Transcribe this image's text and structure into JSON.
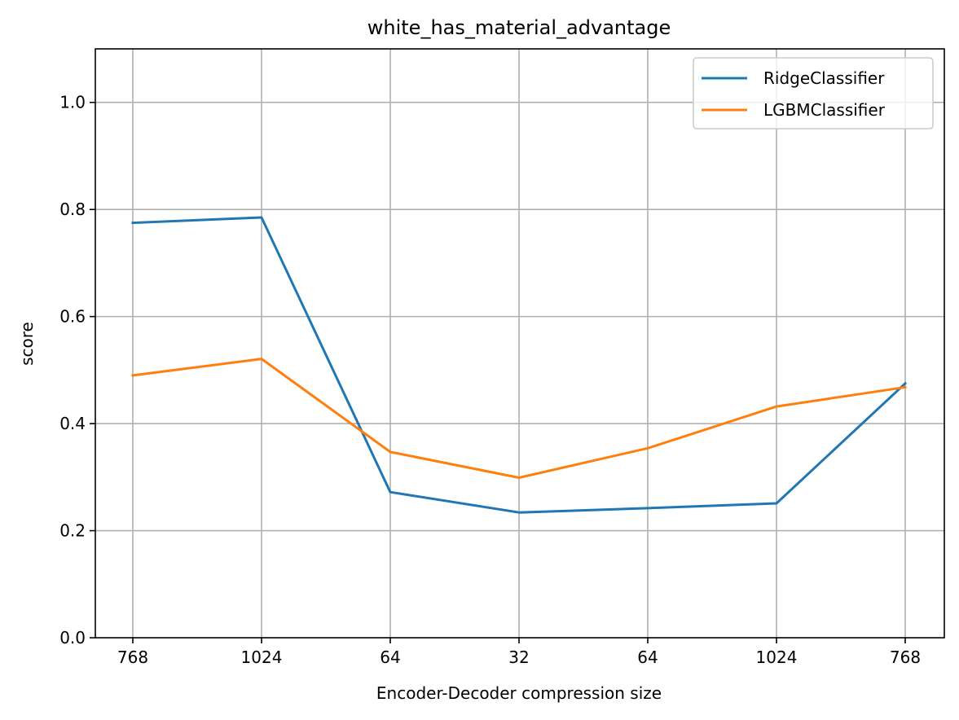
{
  "chart_data": {
    "type": "line",
    "title": "white_has_material_advantage",
    "xlabel": "Encoder-Decoder compression size",
    "ylabel": "score",
    "categories": [
      "768",
      "1024",
      "64",
      "32",
      "64",
      "1024",
      "768"
    ],
    "ylim": [
      0,
      1.1
    ],
    "yticks": [
      0.0,
      0.2,
      0.4,
      0.6,
      0.8,
      1.0
    ],
    "ytick_labels": [
      "0.0",
      "0.2",
      "0.4",
      "0.6",
      "0.8",
      "1.0"
    ],
    "grid": true,
    "legend_position": "top-right",
    "series": [
      {
        "name": "RidgeClassifier",
        "color": "#1f77b4",
        "values": [
          0.775,
          0.785,
          0.272,
          0.234,
          0.242,
          0.251,
          0.475
        ]
      },
      {
        "name": "LGBMClassifier",
        "color": "#ff7f0e",
        "values": [
          0.49,
          0.521,
          0.347,
          0.299,
          0.354,
          0.432,
          0.468
        ]
      }
    ]
  }
}
